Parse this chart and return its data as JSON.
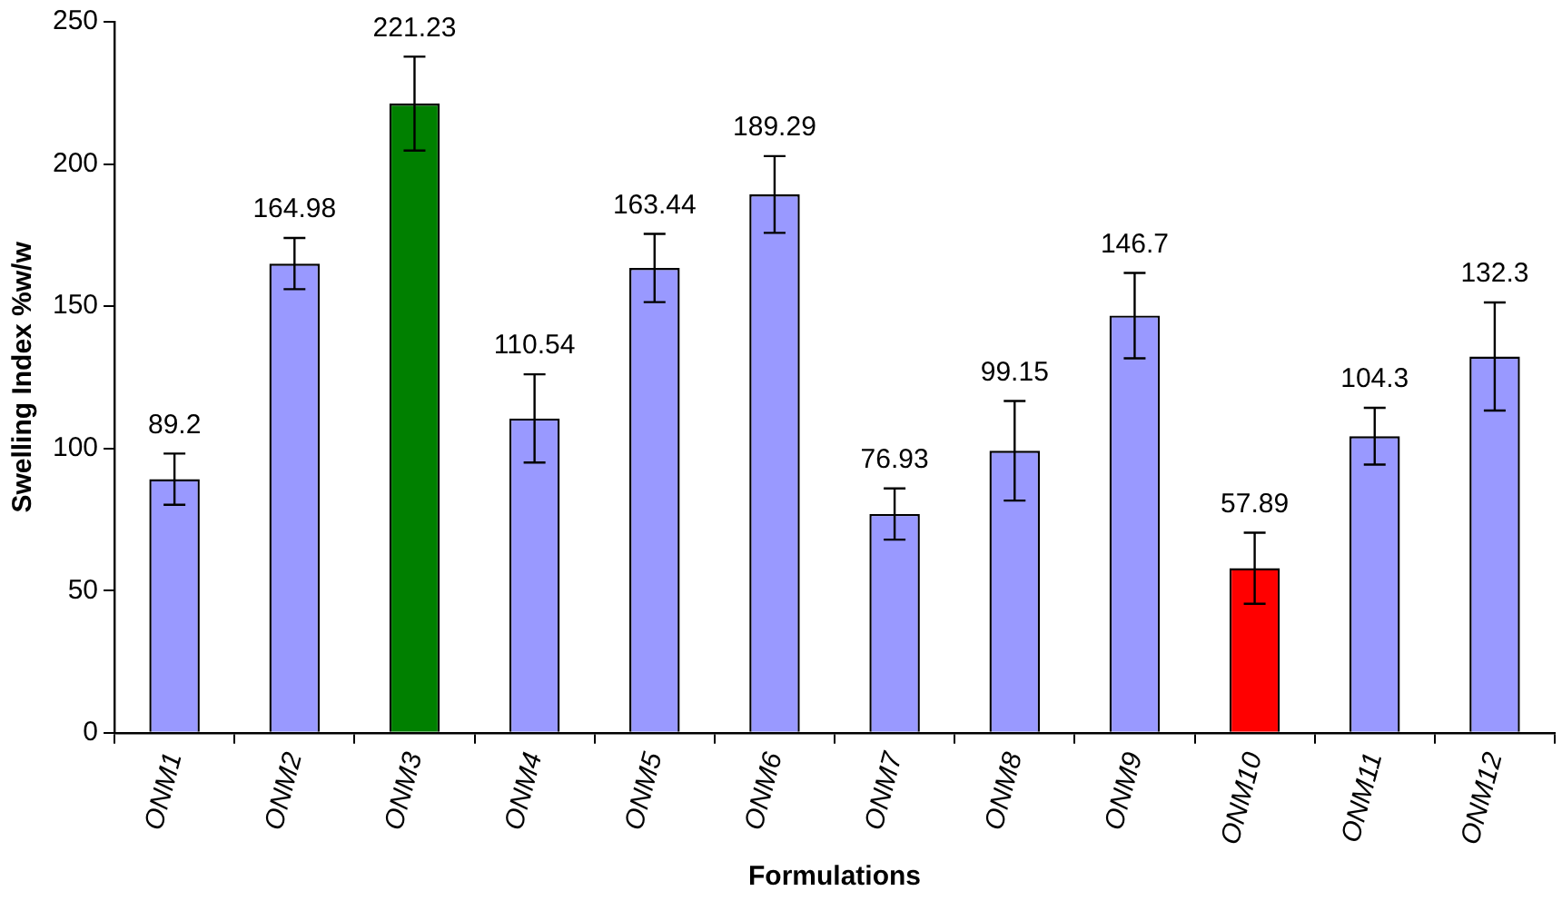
{
  "chart_data": {
    "type": "bar",
    "xlabel": "Formulations",
    "ylabel": "Swelling Index %w/w",
    "categories": [
      "ONM1",
      "ONM2",
      "ONM3",
      "ONM4",
      "ONM5",
      "ONM6",
      "ONM7",
      "ONM8",
      "ONM9",
      "ONM10",
      "ONM11",
      "ONM12"
    ],
    "values": [
      89.2,
      164.98,
      221.23,
      110.54,
      163.44,
      189.29,
      76.93,
      99.15,
      146.7,
      57.89,
      104.3,
      132.3
    ],
    "colors": [
      "#9999ff",
      "#9999ff",
      "#008000",
      "#9999ff",
      "#9999ff",
      "#9999ff",
      "#9999ff",
      "#9999ff",
      "#9999ff",
      "#ff0000",
      "#9999ff",
      "#9999ff"
    ],
    "errors": [
      9,
      9,
      16.5,
      15.5,
      12,
      13.5,
      9,
      17.5,
      15,
      12.5,
      10,
      19
    ],
    "data_labels": true,
    "ylim": [
      0,
      250
    ],
    "yticks": [
      0,
      50,
      100,
      150,
      200,
      250
    ],
    "grid": false,
    "legend": false
  }
}
